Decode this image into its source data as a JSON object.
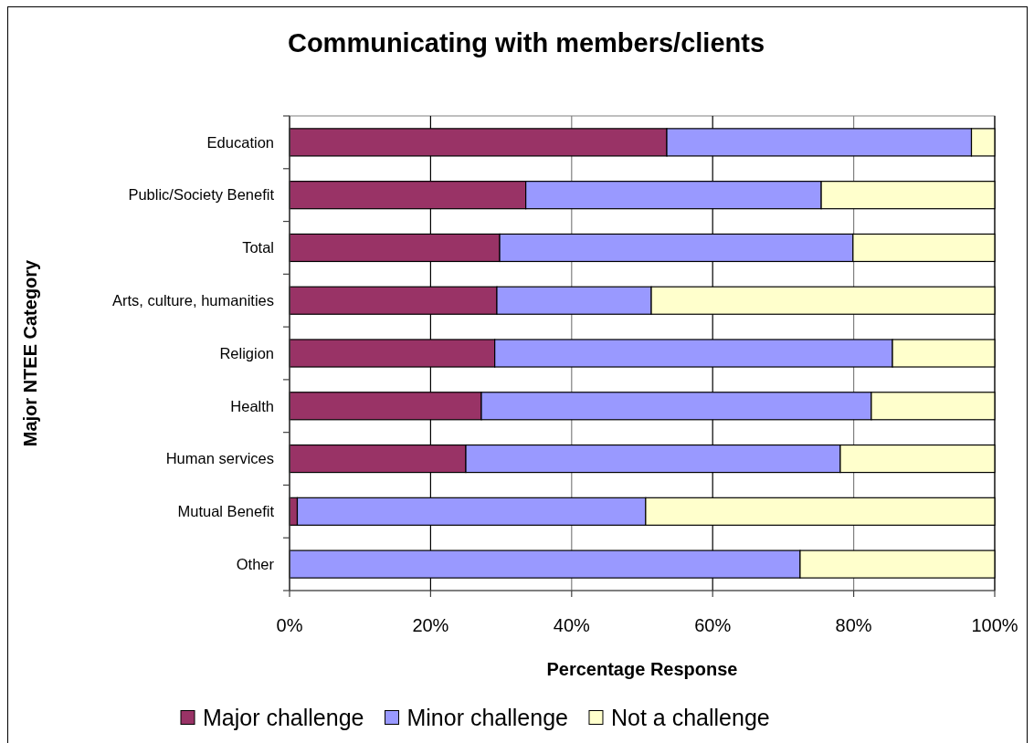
{
  "chart_data": {
    "type": "bar",
    "orientation": "horizontal",
    "stacked": true,
    "title": "Communicating with members/clients",
    "xlabel": "Percentage Response",
    "ylabel": "Major NTEE Category",
    "categories": [
      "Education",
      "Public/Society Benefit",
      "Total",
      "Arts, culture, humanities",
      "Religion",
      "Health",
      "Human services",
      "Mutual Benefit",
      "Other"
    ],
    "series": [
      {
        "name": "Major challenge",
        "color": "#993366",
        "values": [
          53.5,
          33.5,
          29.8,
          29.4,
          29.1,
          27.2,
          25.0,
          1.1,
          0
        ]
      },
      {
        "name": "Minor challenge",
        "color": "#9999ff",
        "values": [
          43.2,
          41.9,
          50.1,
          21.9,
          56.4,
          55.3,
          53.1,
          49.4,
          72.4
        ]
      },
      {
        "name": "Not a challenge",
        "color": "#ffffcc",
        "values": [
          3.3,
          24.6,
          20.1,
          48.7,
          14.5,
          17.5,
          21.9,
          49.5,
          27.6
        ]
      }
    ],
    "xlim": [
      0,
      100
    ],
    "xticks": [
      {
        "value": 0,
        "label": "0%"
      },
      {
        "value": 20,
        "label": "20%"
      },
      {
        "value": 40,
        "label": "40%"
      },
      {
        "value": 60,
        "label": "60%"
      },
      {
        "value": 80,
        "label": "80%"
      },
      {
        "value": 100,
        "label": "100%"
      }
    ],
    "grid": "x",
    "legend": "bottom"
  }
}
